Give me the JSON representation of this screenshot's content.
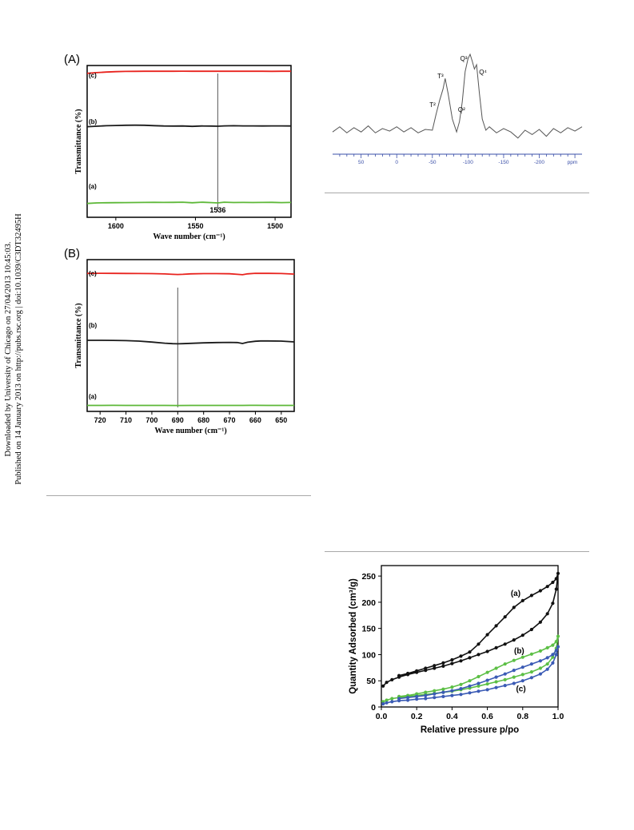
{
  "sidebar": {
    "line1": "Downloaded by University of Chicago on 27/04/2013 10:45:03.",
    "line2": "Published on 14 January 2013 on http://pubs.rsc.org | doi:10.1039/C3DT32495H"
  },
  "chart_data": [
    {
      "type": "line",
      "panel_label": "(A)",
      "xlabel": "Wave number (cm⁻¹)",
      "ylabel": "Transmittance (%)",
      "xlim": [
        1618,
        1490
      ],
      "xticks": [
        1600,
        1550,
        1500
      ],
      "marker_value": 1536,
      "marker_label": "1536",
      "colors": {
        "c": "#e8231e",
        "b": "#1a1a1a",
        "a": "#5db838"
      },
      "series": [
        {
          "name": "(c)",
          "color": "#e8231e",
          "x": [
            1618,
            1612,
            1606,
            1600,
            1594,
            1588,
            1582,
            1576,
            1570,
            1564,
            1558,
            1552,
            1546,
            1540,
            1536,
            1532,
            1526,
            1520,
            1514,
            1508,
            1502,
            1496,
            1490
          ],
          "y": [
            0.84,
            0.88,
            0.91,
            0.93,
            0.94,
            0.945,
            0.948,
            0.95,
            0.951,
            0.952,
            0.953,
            0.95,
            0.95,
            0.952,
            0.948,
            0.95,
            0.951,
            0.949,
            0.952,
            0.95,
            0.947,
            0.949,
            0.948
          ]
        },
        {
          "name": "(b)",
          "color": "#1a1a1a",
          "x": [
            1618,
            1612,
            1606,
            1600,
            1594,
            1588,
            1582,
            1576,
            1570,
            1564,
            1558,
            1552,
            1546,
            1540,
            1536,
            1532,
            1526,
            1520,
            1514,
            1508,
            1502,
            1496,
            1490
          ],
          "y": [
            0.58,
            0.6,
            0.62,
            0.63,
            0.64,
            0.645,
            0.64,
            0.625,
            0.61,
            0.605,
            0.61,
            0.595,
            0.61,
            0.605,
            0.6,
            0.612,
            0.62,
            0.615,
            0.612,
            0.61,
            0.612,
            0.615,
            0.61
          ]
        },
        {
          "name": "(a)",
          "color": "#5db838",
          "x": [
            1618,
            1612,
            1606,
            1600,
            1594,
            1588,
            1582,
            1576,
            1570,
            1564,
            1558,
            1552,
            1546,
            1540,
            1536,
            1532,
            1526,
            1520,
            1514,
            1508,
            1502,
            1496,
            1490
          ],
          "y": [
            0.06,
            0.09,
            0.1,
            0.105,
            0.11,
            0.115,
            0.12,
            0.125,
            0.12,
            0.125,
            0.13,
            0.1,
            0.13,
            0.11,
            0.09,
            0.13,
            0.115,
            0.12,
            0.112,
            0.12,
            0.125,
            0.11,
            0.118
          ]
        }
      ]
    },
    {
      "type": "line",
      "panel_label": "(B)",
      "xlabel": "Wave number (cm⁻¹)",
      "ylabel": "Transmittance (%)",
      "xlim": [
        725,
        645
      ],
      "xticks": [
        720,
        710,
        700,
        690,
        680,
        670,
        660,
        650
      ],
      "marker_value": 690,
      "colors": {
        "c": "#e8231e",
        "b": "#1a1a1a",
        "a": "#5db838"
      },
      "series": [
        {
          "name": "(c)",
          "color": "#e8231e",
          "x": [
            725,
            720,
            715,
            710,
            705,
            700,
            695,
            692,
            690,
            688,
            685,
            680,
            675,
            670,
            667,
            665,
            663,
            660,
            655,
            650,
            645
          ],
          "y": [
            0.92,
            0.925,
            0.922,
            0.918,
            0.915,
            0.91,
            0.895,
            0.88,
            0.87,
            0.88,
            0.9,
            0.91,
            0.912,
            0.905,
            0.88,
            0.86,
            0.9,
            0.925,
            0.92,
            0.915,
            0.89
          ]
        },
        {
          "name": "(b)",
          "color": "#1a1a1a",
          "x": [
            725,
            720,
            715,
            710,
            705,
            700,
            695,
            692,
            690,
            688,
            685,
            680,
            675,
            670,
            667,
            665,
            663,
            660,
            658,
            655,
            650,
            645
          ],
          "y": [
            0.6,
            0.6,
            0.598,
            0.59,
            0.575,
            0.545,
            0.51,
            0.495,
            0.49,
            0.495,
            0.505,
            0.52,
            0.53,
            0.535,
            0.53,
            0.5,
            0.54,
            0.57,
            0.58,
            0.58,
            0.575,
            0.55
          ]
        },
        {
          "name": "(a)",
          "color": "#5db838",
          "x": [
            725,
            720,
            715,
            710,
            705,
            700,
            695,
            690,
            685,
            680,
            675,
            670,
            665,
            662,
            660,
            655,
            650,
            645
          ],
          "y": [
            0.06,
            0.062,
            0.07,
            0.068,
            0.06,
            0.06,
            0.062,
            0.055,
            0.06,
            0.065,
            0.062,
            0.06,
            0.062,
            0.07,
            0.08,
            0.06,
            0.062,
            0.06
          ]
        }
      ]
    },
    {
      "type": "line",
      "xlabel": "ppm",
      "xlim": [
        90,
        -260
      ],
      "xticks": [
        50,
        0,
        -50,
        -100,
        -150,
        -200
      ],
      "tick_labels": [
        "50",
        "0",
        "-50",
        "-100",
        "-150",
        "-200"
      ],
      "peaks": [
        {
          "label": "T²",
          "x": -57
        },
        {
          "label": "T³",
          "x": -68
        },
        {
          "label": "Q²",
          "x": -91
        },
        {
          "label": "Q³",
          "x": -103
        },
        {
          "label": "Q⁴",
          "x": -112
        }
      ],
      "series": [
        {
          "name": "",
          "color": "#555555",
          "x": [
            90,
            80,
            70,
            60,
            50,
            40,
            30,
            20,
            10,
            0,
            -10,
            -20,
            -30,
            -40,
            -50,
            -55,
            -60,
            -65,
            -68,
            -72,
            -78,
            -84,
            -88,
            -92,
            -96,
            -100,
            -103,
            -106,
            -109,
            -112,
            -116,
            -120,
            -125,
            -130,
            -140,
            -150,
            -160,
            -170,
            -180,
            -190,
            -200,
            -210,
            -220,
            -230,
            -240,
            -250,
            -260
          ],
          "y": [
            0.1,
            0.16,
            0.09,
            0.15,
            0.1,
            0.17,
            0.09,
            0.14,
            0.11,
            0.16,
            0.1,
            0.15,
            0.09,
            0.13,
            0.12,
            0.3,
            0.46,
            0.6,
            0.72,
            0.55,
            0.25,
            0.1,
            0.22,
            0.45,
            0.8,
            0.95,
            1.0,
            0.92,
            0.83,
            0.88,
            0.55,
            0.25,
            0.12,
            0.16,
            0.09,
            0.14,
            0.1,
            0.03,
            0.12,
            0.07,
            0.13,
            0.05,
            0.14,
            0.09,
            0.15,
            0.11,
            0.16
          ]
        }
      ]
    },
    {
      "type": "line",
      "xlabel": "Relative pressure p/po",
      "ylabel": "Quantity Adsorbed (cm³/g)",
      "xlim": [
        0.0,
        1.0
      ],
      "ylim": [
        0,
        270
      ],
      "xticks": [
        0.0,
        0.2,
        0.4,
        0.6,
        0.8,
        1.0
      ],
      "yticks": [
        0,
        50,
        100,
        150,
        200,
        250
      ],
      "series": [
        {
          "name": "(a)",
          "color": "#111111",
          "x": [
            0.01,
            0.03,
            0.06,
            0.1,
            0.15,
            0.2,
            0.25,
            0.3,
            0.35,
            0.4,
            0.45,
            0.5,
            0.55,
            0.6,
            0.65,
            0.7,
            0.75,
            0.8,
            0.85,
            0.9,
            0.94,
            0.97,
            0.99,
            1.0,
            0.99,
            0.97,
            0.94,
            0.9,
            0.85,
            0.8,
            0.75,
            0.7,
            0.65,
            0.6,
            0.55,
            0.5,
            0.45,
            0.4,
            0.35,
            0.3,
            0.25,
            0.2,
            0.15,
            0.1
          ],
          "y": [
            40,
            47,
            52,
            57,
            62,
            66,
            70,
            74,
            78,
            83,
            88,
            94,
            100,
            106,
            113,
            120,
            128,
            137,
            148,
            162,
            178,
            198,
            225,
            255,
            245,
            238,
            230,
            222,
            213,
            203,
            190,
            172,
            155,
            138,
            120,
            105,
            97,
            90,
            84,
            79,
            74,
            69,
            64,
            60
          ]
        },
        {
          "name": "(b)",
          "color": "#5cbf45",
          "x": [
            0.01,
            0.03,
            0.06,
            0.1,
            0.15,
            0.2,
            0.25,
            0.3,
            0.35,
            0.4,
            0.45,
            0.5,
            0.55,
            0.6,
            0.65,
            0.7,
            0.75,
            0.8,
            0.85,
            0.9,
            0.94,
            0.97,
            0.99,
            1.0,
            0.99,
            0.97,
            0.94,
            0.9,
            0.85,
            0.8,
            0.75,
            0.7,
            0.65,
            0.6,
            0.55,
            0.5,
            0.45,
            0.4,
            0.35,
            0.3,
            0.25,
            0.2,
            0.15,
            0.1
          ],
          "y": [
            10,
            13,
            16,
            18,
            20,
            22,
            24,
            26,
            28,
            30,
            33,
            36,
            40,
            44,
            48,
            52,
            57,
            62,
            67,
            74,
            82,
            95,
            112,
            135,
            125,
            118,
            113,
            107,
            101,
            95,
            89,
            82,
            74,
            66,
            58,
            50,
            43,
            38,
            34,
            31,
            28,
            25,
            22,
            20
          ]
        },
        {
          "name": "(c)",
          "color": "#3b5bb5",
          "x": [
            0.01,
            0.03,
            0.06,
            0.1,
            0.15,
            0.2,
            0.25,
            0.3,
            0.35,
            0.4,
            0.45,
            0.5,
            0.55,
            0.6,
            0.65,
            0.7,
            0.75,
            0.8,
            0.85,
            0.9,
            0.94,
            0.97,
            0.99,
            1.0,
            0.99,
            0.97,
            0.94,
            0.9,
            0.85,
            0.8,
            0.75,
            0.7,
            0.65,
            0.6,
            0.55,
            0.5,
            0.45,
            0.4,
            0.35,
            0.3,
            0.25,
            0.2,
            0.15,
            0.1
          ],
          "y": [
            6,
            8,
            10,
            12,
            13,
            15,
            16,
            18,
            20,
            22,
            24,
            27,
            30,
            33,
            37,
            41,
            45,
            50,
            56,
            63,
            72,
            84,
            100,
            115,
            108,
            100,
            94,
            88,
            82,
            76,
            70,
            63,
            57,
            51,
            45,
            40,
            35,
            31,
            28,
            25,
            22,
            20,
            18,
            16
          ]
        }
      ],
      "curve_labels": [
        "(a)",
        "(b)",
        "(c)"
      ]
    }
  ]
}
